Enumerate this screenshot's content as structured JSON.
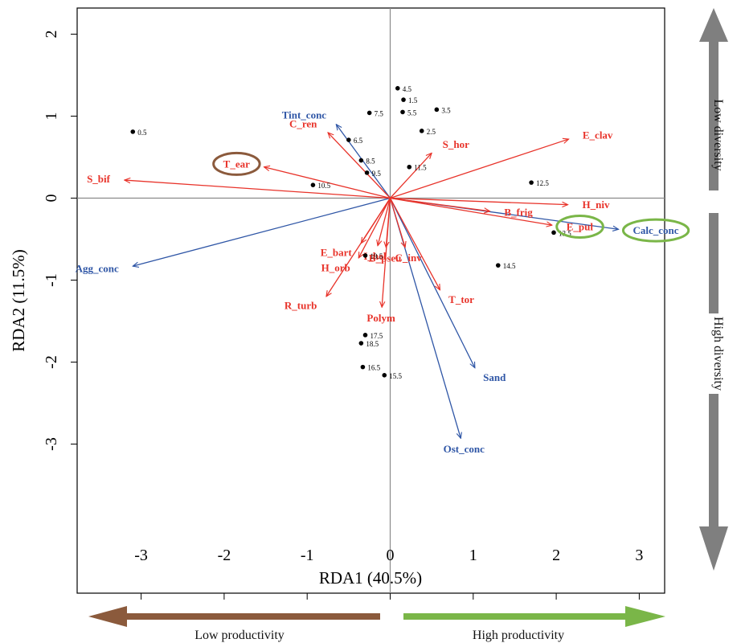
{
  "chart_data": {
    "type": "scatter",
    "subtype": "rda-biplot",
    "xlabel": "RDA1 (40.5%)",
    "ylabel": "RDA2 (11.5%)",
    "xlim": [
      -3.75,
      3.3
    ],
    "ylim": [
      -3.85,
      2.32
    ],
    "xticks": [
      -3,
      -2,
      -1,
      0,
      1,
      2,
      3
    ],
    "yticks": [
      2,
      1,
      0,
      -1,
      -2,
      -3
    ],
    "reference_lines": {
      "x": 0,
      "y": 0
    },
    "grid": false,
    "sites": [
      {
        "label": "0.5",
        "x": -3.1,
        "y": 0.81
      },
      {
        "label": "1.5",
        "x": 0.16,
        "y": 1.2
      },
      {
        "label": "2.5",
        "x": 0.38,
        "y": 0.82
      },
      {
        "label": "3.5",
        "x": 0.56,
        "y": 1.08
      },
      {
        "label": "4.5",
        "x": 0.09,
        "y": 1.34
      },
      {
        "label": "5.5",
        "x": 0.15,
        "y": 1.05
      },
      {
        "label": "6.5",
        "x": -0.5,
        "y": 0.71
      },
      {
        "label": "7.5",
        "x": -0.25,
        "y": 1.04
      },
      {
        "label": "8.5",
        "x": -0.35,
        "y": 0.46
      },
      {
        "label": "9.5",
        "x": -0.28,
        "y": 0.31
      },
      {
        "label": "10.5",
        "x": -0.93,
        "y": 0.16
      },
      {
        "label": "11.5",
        "x": 0.23,
        "y": 0.38
      },
      {
        "label": "12.5",
        "x": 1.7,
        "y": 0.19
      },
      {
        "label": "13.5",
        "x": 1.97,
        "y": -0.42
      },
      {
        "label": "14.5",
        "x": 1.3,
        "y": -0.82
      },
      {
        "label": "15.5",
        "x": -0.07,
        "y": -2.16
      },
      {
        "label": "16.5",
        "x": -0.33,
        "y": -2.06
      },
      {
        "label": "17.5",
        "x": -0.3,
        "y": -1.67
      },
      {
        "label": "18.5",
        "x": -0.35,
        "y": -1.77
      },
      {
        "label": "19.5",
        "x": -0.3,
        "y": -0.7
      }
    ],
    "species": [
      {
        "label": "S_bif",
        "x": -3.2,
        "y": 0.22
      },
      {
        "label": "T_ear",
        "x": -1.52,
        "y": 0.38
      },
      {
        "label": "C_ren",
        "x": -0.75,
        "y": 0.8
      },
      {
        "label": "S_hor",
        "x": 0.5,
        "y": 0.55
      },
      {
        "label": "E_clav",
        "x": 2.15,
        "y": 0.72
      },
      {
        "label": "H_niv",
        "x": 2.14,
        "y": -0.08
      },
      {
        "label": "B_frig",
        "x": 1.2,
        "y": -0.16
      },
      {
        "label": "E_pul",
        "x": 1.95,
        "y": -0.33
      },
      {
        "label": "C_inv",
        "x": 0.18,
        "y": -0.6
      },
      {
        "label": "T_tor",
        "x": 0.6,
        "y": -1.12
      },
      {
        "label": "B_pseu",
        "x": -0.05,
        "y": -0.6
      },
      {
        "label": "E_bart",
        "x": -0.35,
        "y": -0.55
      },
      {
        "label": "H_orb",
        "x": -0.38,
        "y": -0.73
      },
      {
        "label": "I_hel",
        "x": -0.15,
        "y": -0.58
      },
      {
        "label": "R_turb",
        "x": -0.77,
        "y": -1.2
      },
      {
        "label": "Polym",
        "x": -0.1,
        "y": -1.33
      }
    ],
    "environment": [
      {
        "label": "Tint_conc",
        "x": -0.65,
        "y": 0.9
      },
      {
        "label": "Agg_conc",
        "x": -3.1,
        "y": -0.83
      },
      {
        "label": "Calc_conc",
        "x": 2.75,
        "y": -0.38
      },
      {
        "label": "Sand",
        "x": 1.02,
        "y": -2.07
      },
      {
        "label": "Ost_conc",
        "x": 0.85,
        "y": -2.93
      }
    ],
    "highlights": [
      {
        "label": "T_ear",
        "color": "#8b5a3c"
      },
      {
        "label": "E_pul",
        "color": "#7ab648"
      },
      {
        "label": "Calc_conc",
        "color": "#7ab648"
      }
    ],
    "colors": {
      "species": "#e8332a",
      "environment": "#2f56a6",
      "axis": "#000000",
      "reference": "#8a8a8a",
      "low_productivity": "#8b5a3c",
      "high_productivity": "#7ab648",
      "diversity_arrow": "#7f7f7f"
    },
    "side_annotations": {
      "low_diversity": "Low diversity",
      "high_diversity": "High diversity",
      "low_productivity": "Low productivity",
      "high_productivity": "High productivity"
    }
  }
}
